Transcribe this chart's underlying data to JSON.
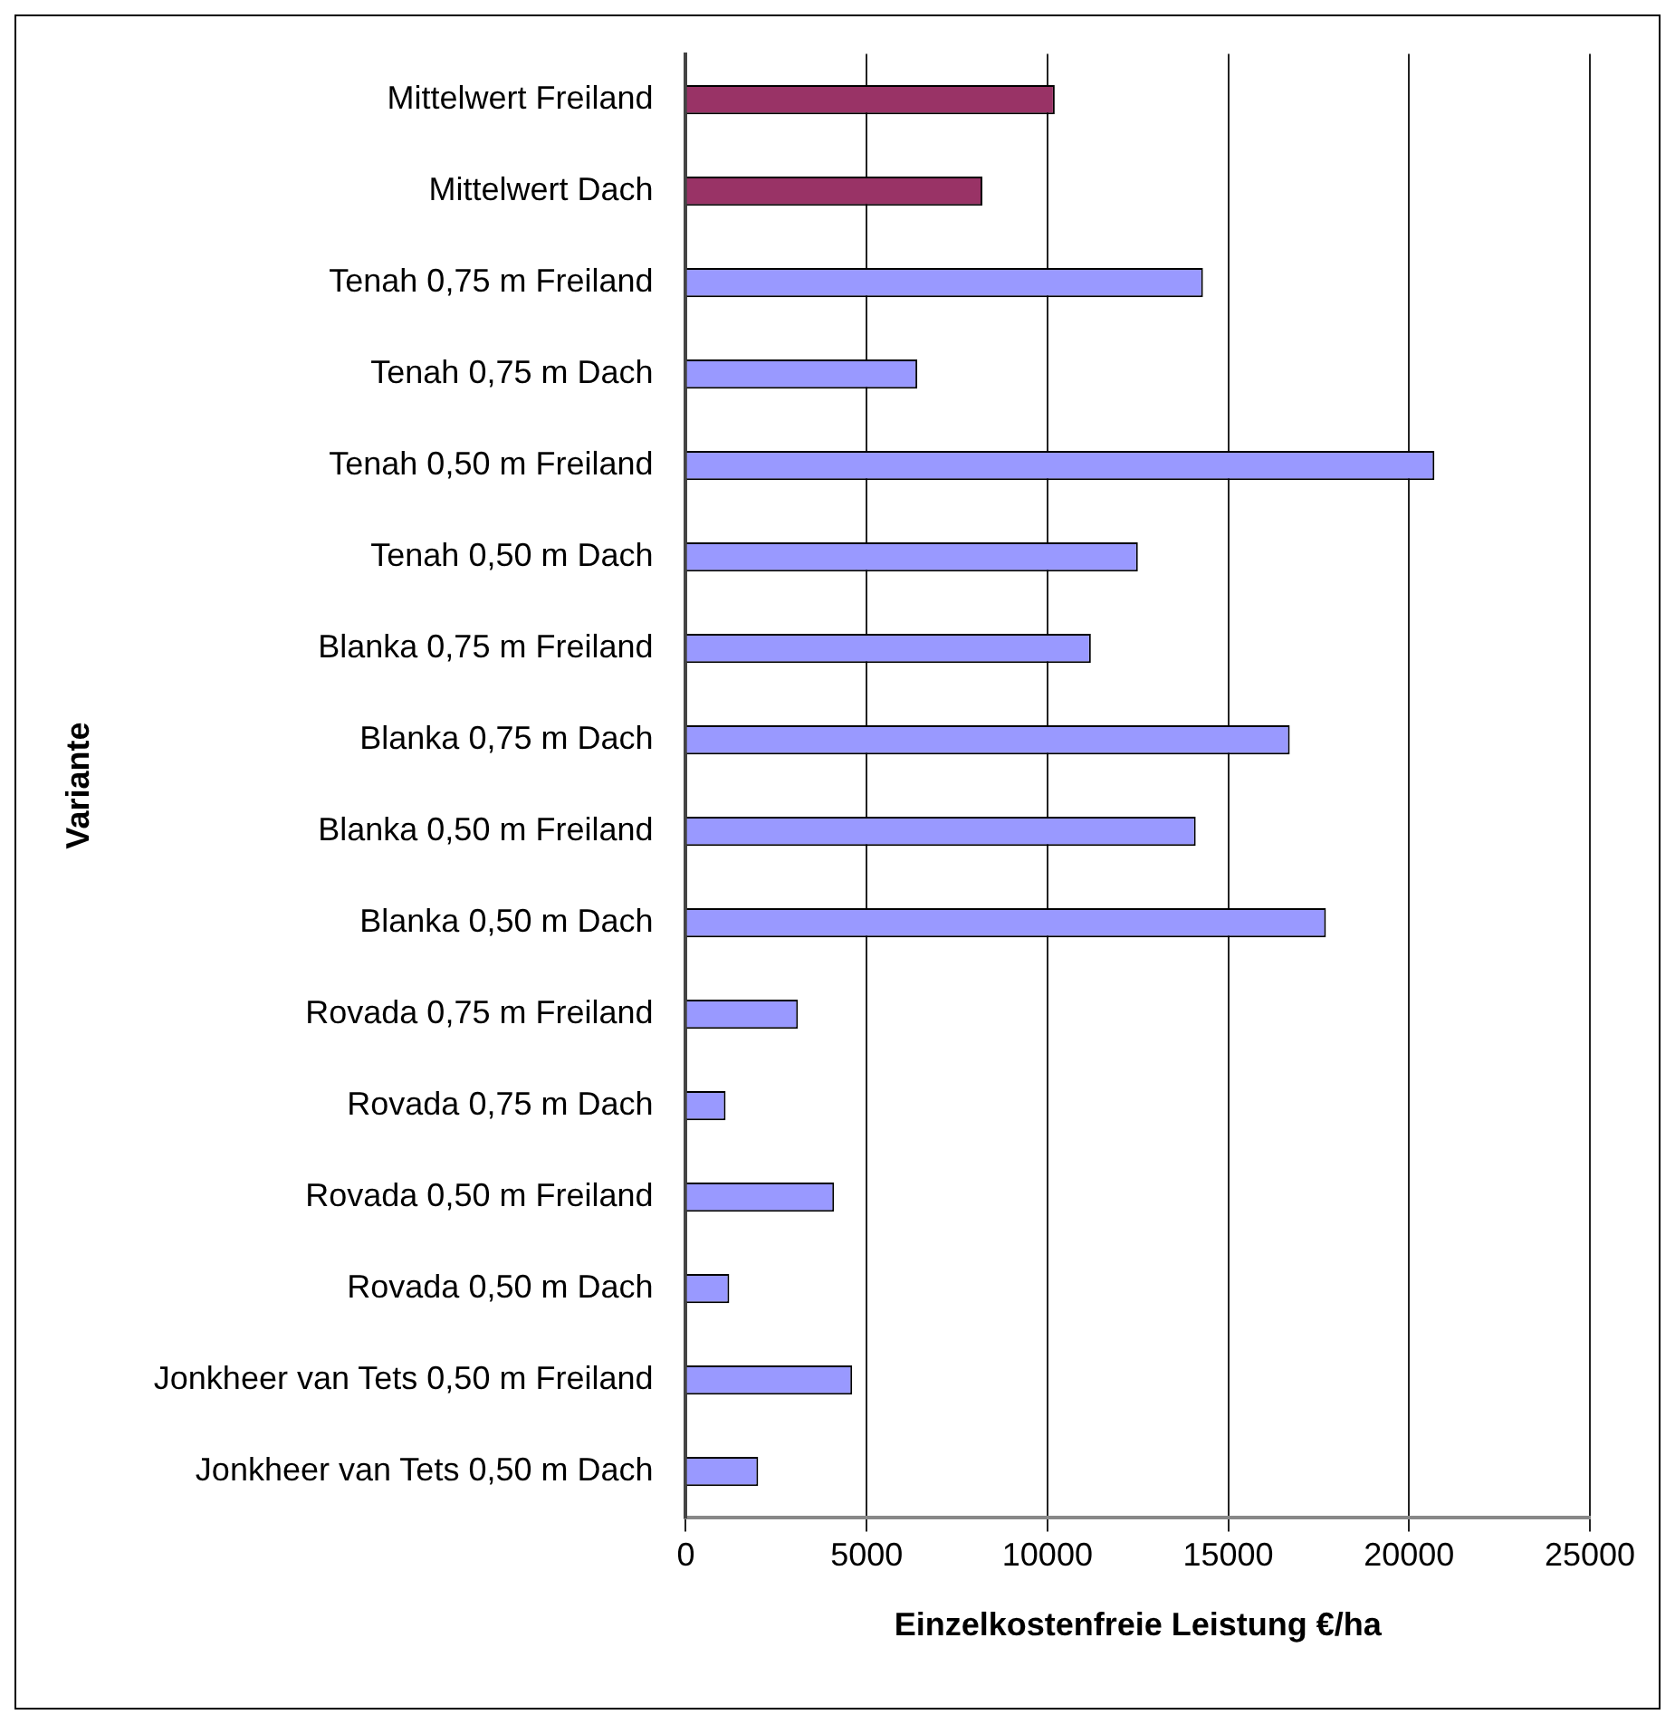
{
  "chart_data": {
    "type": "bar",
    "orientation": "horizontal",
    "xlabel": "Einzelkostenfreie Leistung €/ha",
    "ylabel": "Variante",
    "categories": [
      "Mittelwert Freiland",
      "Mittelwert Dach",
      "Tenah 0,75 m Freiland",
      "Tenah 0,75 m Dach",
      "Tenah 0,50 m Freiland",
      "Tenah 0,50 m Dach",
      "Blanka 0,75 m Freiland",
      "Blanka 0,75 m Dach",
      "Blanka 0,50 m Freiland",
      "Blanka 0,50 m Dach",
      "Rovada 0,75 m Freiland",
      "Rovada 0,75 m Dach",
      "Rovada 0,50 m Freiland",
      "Rovada 0,50 m Dach",
      "Jonkheer van Tets 0,50 m Freiland",
      "Jonkheer van Tets 0,50 m Dach"
    ],
    "values": [
      10200,
      8200,
      14300,
      6400,
      20700,
      12500,
      11200,
      16700,
      14100,
      17700,
      3100,
      1100,
      4100,
      1200,
      4600,
      2000
    ],
    "colors": [
      "#993366",
      "#993366",
      "#9999ff",
      "#9999ff",
      "#9999ff",
      "#9999ff",
      "#9999ff",
      "#9999ff",
      "#9999ff",
      "#9999ff",
      "#9999ff",
      "#9999ff",
      "#9999ff",
      "#9999ff",
      "#9999ff",
      "#9999ff"
    ],
    "xlim": [
      0,
      25000
    ],
    "xticks": [
      0,
      5000,
      10000,
      15000,
      20000,
      25000
    ],
    "grid": "x",
    "legend": false
  }
}
